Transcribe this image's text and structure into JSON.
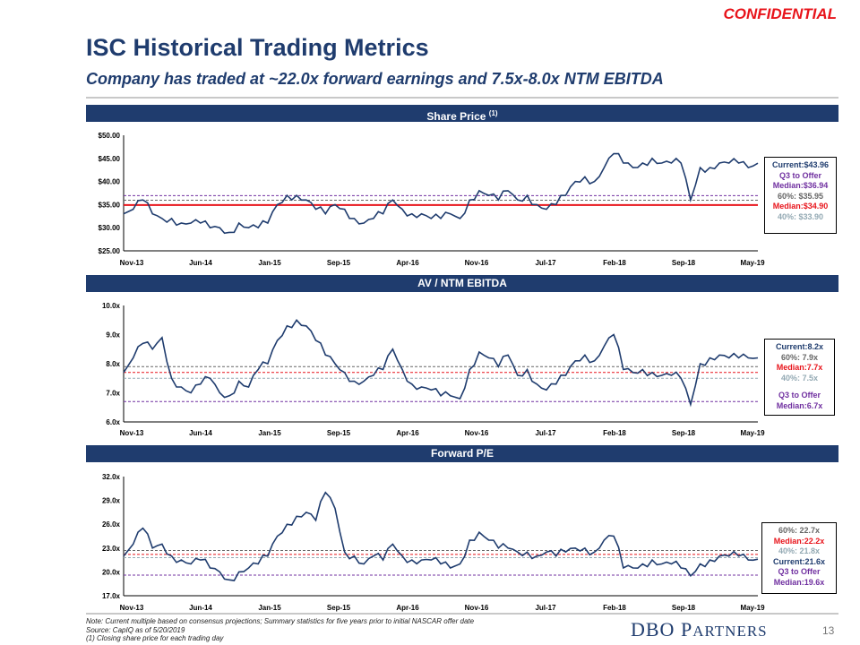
{
  "confidential": "CONFIDENTIAL",
  "title": "ISC Historical Trading Metrics",
  "subtitle": "Company has traded at ~22.0x forward earnings and 7.5x-8.0x NTM  EBITDA",
  "sections": {
    "share_price": "Share Price",
    "share_price_note": "(1)",
    "ebitda": "AV / NTM  EBITDA",
    "pe": "Forward P/E"
  },
  "colors": {
    "navy": "#1f3c6e",
    "line": "#1f3c6e",
    "median": "#e8141b",
    "q3": "#7030a0",
    "p60": "#666666",
    "p40": "#93a9b3"
  },
  "chart_data": [
    {
      "type": "line",
      "title": "Share Price",
      "x_labels": [
        "Nov-13",
        "Jun-14",
        "Jan-15",
        "Sep-15",
        "Apr-16",
        "Nov-16",
        "Jul-17",
        "Feb-18",
        "Sep-18",
        "May-19"
      ],
      "y_ticks": [
        "$25.00",
        "$30.00",
        "$35.00",
        "$40.00",
        "$45.00",
        "$50.00"
      ],
      "ylim": [
        25,
        50
      ],
      "values": [
        33,
        34,
        36,
        33,
        32,
        32,
        31,
        31,
        31,
        30,
        30,
        29,
        31,
        30,
        30,
        31,
        35,
        37,
        37,
        36,
        34,
        33,
        35,
        34,
        32,
        31,
        32,
        33,
        36,
        34,
        33,
        33,
        32,
        32,
        33,
        32,
        36,
        38,
        37,
        36,
        38,
        36,
        37,
        35,
        34,
        35,
        37,
        40,
        41,
        40,
        43,
        46,
        44,
        43,
        44,
        45,
        44,
        44,
        44,
        36,
        43,
        43,
        44,
        44,
        44,
        43,
        43.96
      ],
      "ref_lines": [
        {
          "value": 34.9,
          "kind": "median"
        },
        {
          "value": 35.95,
          "kind": "p60"
        },
        {
          "value": 36.94,
          "kind": "q3"
        }
      ],
      "legend": [
        {
          "text": "Current:$43.96",
          "kind": "line"
        },
        {
          "text": "Q3 to Offer",
          "kind": "q3"
        },
        {
          "text": "Median:$36.94",
          "kind": "q3"
        },
        {
          "text": "60%: $35.95",
          "kind": "p60"
        },
        {
          "text": "Median:$34.90",
          "kind": "median"
        },
        {
          "text": "40%: $33.90",
          "kind": "p40"
        }
      ]
    },
    {
      "type": "line",
      "title": "AV / NTM EBITDA",
      "x_labels": [
        "Nov-13",
        "Jun-14",
        "Jan-15",
        "Sep-15",
        "Apr-16",
        "Nov-16",
        "Jul-17",
        "Feb-18",
        "Sep-18",
        "May-19"
      ],
      "y_ticks": [
        "6.0x",
        "7.0x",
        "8.0x",
        "9.0x",
        "10.0x"
      ],
      "ylim": [
        6,
        10
      ],
      "values": [
        7.7,
        8.2,
        8.7,
        8.5,
        8.9,
        7.5,
        7.2,
        7.0,
        7.3,
        7.5,
        7.0,
        6.9,
        7.4,
        7.2,
        7.8,
        8.0,
        8.8,
        9.3,
        9.5,
        9.3,
        8.8,
        8.3,
        8.0,
        7.7,
        7.4,
        7.4,
        7.6,
        7.8,
        8.5,
        7.8,
        7.3,
        7.2,
        7.1,
        6.9,
        6.9,
        6.8,
        7.8,
        8.4,
        8.2,
        7.9,
        8.3,
        7.6,
        7.8,
        7.3,
        7.1,
        7.3,
        7.6,
        8.1,
        8.3,
        8.1,
        8.6,
        9.0,
        7.8,
        7.7,
        7.8,
        7.7,
        7.6,
        7.6,
        7.5,
        6.6,
        8.0,
        8.2,
        8.3,
        8.2,
        8.2,
        8.2,
        8.2
      ],
      "ref_lines": [
        {
          "value": 7.9,
          "kind": "p60"
        },
        {
          "value": 7.7,
          "kind": "median"
        },
        {
          "value": 7.5,
          "kind": "p40"
        },
        {
          "value": 6.7,
          "kind": "q3"
        }
      ],
      "legend": [
        {
          "text": "Current:8.2x",
          "kind": "line"
        },
        {
          "text": "60%: 7.9x",
          "kind": "p60"
        },
        {
          "text": "Median:7.7x",
          "kind": "median"
        },
        {
          "text": "40%: 7.5x",
          "kind": "p40"
        },
        {
          "text": "",
          "kind": "gap"
        },
        {
          "text": "Q3 to Offer",
          "kind": "q3"
        },
        {
          "text": "Median:6.7x",
          "kind": "q3"
        }
      ]
    },
    {
      "type": "line",
      "title": "Forward P/E",
      "x_labels": [
        "Nov-13",
        "Jun-14",
        "Jan-15",
        "Sep-15",
        "Apr-16",
        "Nov-16",
        "Jul-17",
        "Feb-18",
        "Sep-18",
        "May-19"
      ],
      "y_ticks": [
        "17.0x",
        "20.0x",
        "23.0x",
        "26.0x",
        "29.0x",
        "32.0x"
      ],
      "ylim": [
        17,
        32
      ],
      "values": [
        22.0,
        23.5,
        25.5,
        23.0,
        23.5,
        22.0,
        21.5,
        21.0,
        21.5,
        20.5,
        20.0,
        19.0,
        20.0,
        20.5,
        21.0,
        22.0,
        24.5,
        26.0,
        27.0,
        27.5,
        26.5,
        30.0,
        28.0,
        22.5,
        22.0,
        21.0,
        22.0,
        21.5,
        23.5,
        22.0,
        21.5,
        21.5,
        21.5,
        21.0,
        20.5,
        21.0,
        24.0,
        25.0,
        24.0,
        23.0,
        23.0,
        22.5,
        22.5,
        22.0,
        22.5,
        22.0,
        22.5,
        23.0,
        23.0,
        22.5,
        24.0,
        24.5,
        20.5,
        20.5,
        21.0,
        21.5,
        21.0,
        21.0,
        20.5,
        19.5,
        21.0,
        21.5,
        22.0,
        22.0,
        22.0,
        21.5,
        21.6
      ],
      "ref_lines": [
        {
          "value": 22.7,
          "kind": "p60"
        },
        {
          "value": 22.2,
          "kind": "median"
        },
        {
          "value": 21.8,
          "kind": "p40"
        },
        {
          "value": 19.6,
          "kind": "q3"
        }
      ],
      "legend": [
        {
          "text": "60%: 22.7x",
          "kind": "p60"
        },
        {
          "text": "Median:22.2x",
          "kind": "median"
        },
        {
          "text": "40%: 21.8x",
          "kind": "p40"
        },
        {
          "text": "Current:21.6x",
          "kind": "line"
        },
        {
          "text": "Q3 to Offer",
          "kind": "q3"
        },
        {
          "text": "Median:19.6x",
          "kind": "q3"
        }
      ]
    }
  ],
  "notes": [
    "Note: Current multiple  based on consensus projections; Summary  statistics for five years prior to initial NASCAR  offer date",
    "Source: CapIQ  as of 5/20/2019",
    "(1) Closing share price for each trading day"
  ],
  "logo": {
    "big1": "DBO P",
    "small1": "ARTNERS"
  },
  "page_number": "13"
}
